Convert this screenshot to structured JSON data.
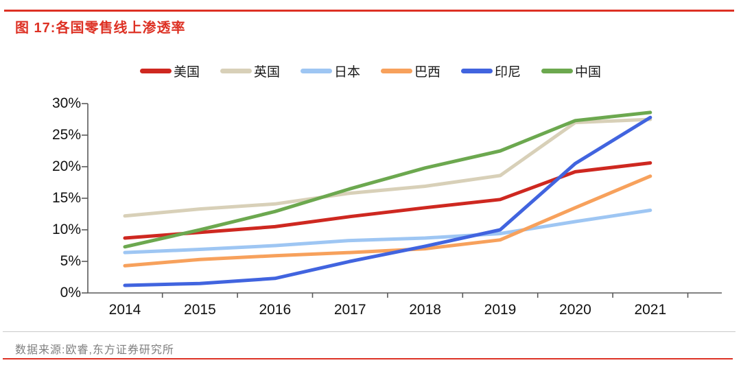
{
  "title": "图 17:各国零售线上渗透率",
  "source": "数据来源:欧睿,东方证券研究所",
  "accent_color": "#dd3124",
  "axis_color": "#595959",
  "chart_data": {
    "type": "line",
    "title": "各国零售线上渗透率",
    "x": [
      2014,
      2015,
      2016,
      2017,
      2018,
      2019,
      2020,
      2021
    ],
    "series": [
      {
        "name": "美国",
        "color": "#ce2820",
        "values": [
          8.7,
          9.6,
          10.5,
          12.1,
          13.5,
          14.8,
          19.2,
          20.6
        ]
      },
      {
        "name": "英国",
        "color": "#d8d0b8",
        "values": [
          12.2,
          13.3,
          14.1,
          15.8,
          16.9,
          18.6,
          27.0,
          27.5
        ]
      },
      {
        "name": "日本",
        "color": "#9ec6f3",
        "values": [
          6.4,
          6.9,
          7.5,
          8.3,
          8.7,
          9.4,
          11.3,
          13.1
        ]
      },
      {
        "name": "巴西",
        "color": "#f7a15c",
        "values": [
          4.3,
          5.3,
          5.9,
          6.4,
          7.0,
          8.4,
          13.5,
          18.5
        ]
      },
      {
        "name": "印尼",
        "color": "#4164df",
        "values": [
          1.2,
          1.5,
          2.3,
          5.0,
          7.4,
          10.0,
          20.5,
          27.8
        ]
      },
      {
        "name": "中国",
        "color": "#6ca84f",
        "values": [
          7.3,
          10.0,
          12.9,
          16.5,
          19.8,
          22.5,
          27.3,
          28.6
        ]
      }
    ],
    "ylim": [
      0,
      30
    ],
    "yticks": [
      0,
      5,
      10,
      15,
      20,
      25,
      30
    ],
    "ytick_labels": [
      "0%",
      "5%",
      "10%",
      "15%",
      "20%",
      "25%",
      "30%"
    ],
    "xlabel": "",
    "ylabel": "",
    "grid": false,
    "legend_position": "top"
  }
}
